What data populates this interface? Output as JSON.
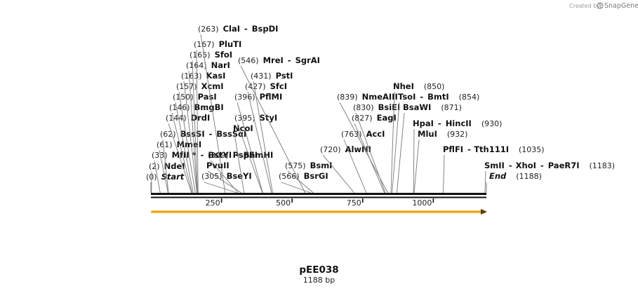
{
  "credit": {
    "text": "Created by",
    "brand": "SnapGene",
    "logo_icon": "snapgene-logo-icon"
  },
  "plasmid": {
    "name": "pEE038",
    "length_label": "1188 bp",
    "length": 1188
  },
  "axis": {
    "ticks": [
      "250",
      "500",
      "750",
      "1000"
    ],
    "tick_values": [
      250,
      500,
      750,
      1000
    ]
  },
  "feature": {
    "name": "orf-arrow",
    "start": 1,
    "end": 1188,
    "color": "#f0a000",
    "direction": "forward"
  },
  "sites": [
    {
      "pos": 0,
      "label": "(0)",
      "names": [
        "Start"
      ],
      "terminal": true
    },
    {
      "pos": 2,
      "label": "(2)",
      "names": [
        "NdeI"
      ]
    },
    {
      "pos": 33,
      "label": "(33)",
      "names": [
        "MfII *",
        "BstYI",
        "BamHI"
      ]
    },
    {
      "pos": 61,
      "label": "(61)",
      "names": [
        "MmeI"
      ]
    },
    {
      "pos": 62,
      "label": "(62)",
      "names": [
        "BssSI",
        "BssSαI"
      ]
    },
    {
      "pos": 144,
      "label": "(144)",
      "names": [
        "DrdI"
      ]
    },
    {
      "pos": 146,
      "label": "(146)",
      "names": [
        "BmgBI"
      ]
    },
    {
      "pos": 150,
      "label": "(150)",
      "names": [
        "PasI"
      ]
    },
    {
      "pos": 157,
      "label": "(157)",
      "names": [
        "XcmI"
      ]
    },
    {
      "pos": 163,
      "label": "(163)",
      "names": [
        "KasI"
      ]
    },
    {
      "pos": 164,
      "label": "(164)",
      "names": [
        "NarI"
      ]
    },
    {
      "pos": 165,
      "label": "(165)",
      "names": [
        "SfoI"
      ]
    },
    {
      "pos": 167,
      "label": "(167)",
      "names": [
        "PluTI"
      ]
    },
    {
      "pos": 263,
      "label": "(263)",
      "names": [
        "ClaI",
        "BspDI"
      ]
    },
    {
      "pos": 305,
      "label": "(305)",
      "names": [
        "BseYI"
      ]
    },
    {
      "pos": 309,
      "label": "(309)",
      "names": [
        "PspFI"
      ]
    },
    {
      "pos": 320,
      "label": "",
      "names": [
        "PvuII"
      ]
    },
    {
      "pos": 330,
      "label": "",
      "names": [
        "NcoI"
      ]
    },
    {
      "pos": 395,
      "label": "(395)",
      "names": [
        "StyI"
      ]
    },
    {
      "pos": 396,
      "label": "(396)",
      "names": [
        "PflMI"
      ]
    },
    {
      "pos": 427,
      "label": "(427)",
      "names": [
        "SfcI"
      ]
    },
    {
      "pos": 431,
      "label": "(431)",
      "names": [
        "PstI"
      ]
    },
    {
      "pos": 546,
      "label": "(546)",
      "names": [
        "MreI",
        "SgrAI"
      ]
    },
    {
      "pos": 566,
      "label": "(566)",
      "names": [
        "BsrGI"
      ]
    },
    {
      "pos": 575,
      "label": "(575)",
      "names": [
        "BsmI"
      ]
    },
    {
      "pos": 720,
      "label": "(720)",
      "names": [
        "AlwNI"
      ]
    },
    {
      "pos": 763,
      "label": "(763)",
      "names": [
        "AccI"
      ]
    },
    {
      "pos": 827,
      "label": "(827)",
      "names": [
        "EagI"
      ]
    },
    {
      "pos": 830,
      "label": "(830)",
      "names": [
        "BsiEI"
      ]
    },
    {
      "pos": 839,
      "label": "(839)",
      "names": [
        "NmeAIII"
      ]
    },
    {
      "pos": 850,
      "label": "(850)",
      "names": [
        "NheI"
      ]
    },
    {
      "pos": 854,
      "label": "(854)",
      "names": [
        "TsoI",
        "BmtI"
      ]
    },
    {
      "pos": 871,
      "label": "(871)",
      "names": [
        "BsaWI"
      ]
    },
    {
      "pos": 930,
      "label": "(930)",
      "names": [
        "HpaI",
        "HincII"
      ]
    },
    {
      "pos": 932,
      "label": "(932)",
      "names": [
        "MluI"
      ]
    },
    {
      "pos": 1035,
      "label": "(1035)",
      "names": [
        "PflFI",
        "Tth111I"
      ]
    },
    {
      "pos": 1183,
      "label": "(1183)",
      "names": [
        "SmII",
        "XhoI",
        "PaeR7I"
      ]
    },
    {
      "pos": 1188,
      "label": "(1188)",
      "names": [
        "End"
      ],
      "terminal": true
    }
  ]
}
